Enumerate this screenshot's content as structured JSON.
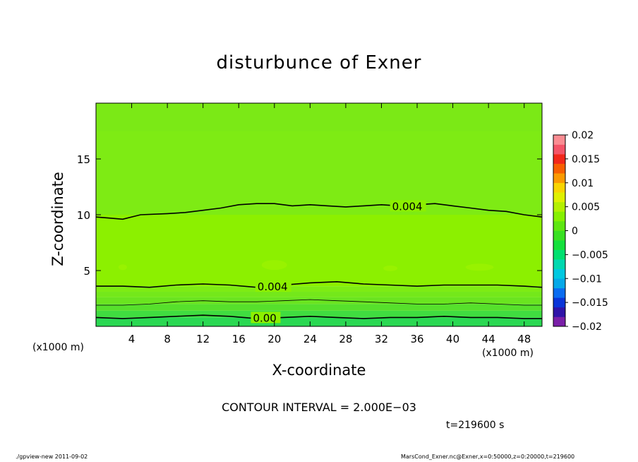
{
  "chart_data": {
    "type": "heatmap",
    "title": "disturbunce of Exner",
    "xlabel": "X-coordinate",
    "ylabel": "Z-coordinate",
    "x_unit_left": "(x1000 m)",
    "x_unit_right": "(x1000 m)",
    "xlim": [
      0,
      50
    ],
    "ylim": [
      0,
      20
    ],
    "xticks": [
      4,
      8,
      12,
      16,
      20,
      24,
      28,
      32,
      36,
      40,
      44,
      48
    ],
    "yticks": [
      5,
      10,
      15
    ],
    "colorbar": {
      "ticks": [
        0.02,
        0.015,
        0.01,
        0.005,
        0,
        -0.005,
        -0.01,
        -0.015,
        -0.02
      ],
      "tick_labels": [
        "0.02",
        "0.015",
        "0.01",
        "0.005",
        "0",
        "−0.005",
        "−0.01",
        "−0.015",
        "−0.02"
      ],
      "range": [
        -0.02,
        0.02
      ],
      "level_colors": [
        "#7a1fa8",
        "#2f14a8",
        "#0a35d8",
        "#0a6cf0",
        "#05a8e8",
        "#00c8e0",
        "#00d8b0",
        "#00e070",
        "#14e03c",
        "#38e021",
        "#5ee611",
        "#86f000",
        "#b4f000",
        "#dff000",
        "#f8d400",
        "#fb9a00",
        "#f85f00",
        "#f2271a",
        "#f45468",
        "#fa8c92"
      ]
    },
    "contours": [
      {
        "label": "0.004",
        "points": [
          [
            0,
            9.8
          ],
          [
            1.5,
            9.7
          ],
          [
            3,
            9.6
          ],
          [
            5,
            10
          ],
          [
            8,
            10.1
          ],
          [
            10,
            10.2
          ],
          [
            12,
            10.4
          ],
          [
            14,
            10.6
          ],
          [
            16,
            10.9
          ],
          [
            18,
            11
          ],
          [
            20,
            11
          ],
          [
            22,
            10.8
          ],
          [
            24,
            10.9
          ],
          [
            26,
            10.8
          ],
          [
            28,
            10.7
          ],
          [
            30,
            10.8
          ],
          [
            32,
            10.9
          ],
          [
            34,
            10.8
          ],
          [
            36,
            10.9
          ],
          [
            38,
            11
          ],
          [
            40,
            10.8
          ],
          [
            42,
            10.6
          ],
          [
            44,
            10.4
          ],
          [
            46,
            10.3
          ],
          [
            48,
            10
          ],
          [
            50,
            9.8
          ]
        ],
        "label_at": [
          33.2,
          10.8
        ]
      },
      {
        "label": "0.004",
        "points": [
          [
            0,
            3.6
          ],
          [
            3,
            3.6
          ],
          [
            6,
            3.5
          ],
          [
            9,
            3.7
          ],
          [
            12,
            3.8
          ],
          [
            15,
            3.7
          ],
          [
            18,
            3.5
          ],
          [
            21,
            3.7
          ],
          [
            24,
            3.9
          ],
          [
            27,
            4
          ],
          [
            30,
            3.8
          ],
          [
            33,
            3.7
          ],
          [
            36,
            3.6
          ],
          [
            39,
            3.7
          ],
          [
            42,
            3.7
          ],
          [
            45,
            3.7
          ],
          [
            48,
            3.6
          ],
          [
            50,
            3.5
          ]
        ],
        "label_at": [
          18.1,
          3.6
        ]
      },
      {
        "label": "",
        "points": [
          [
            0,
            1.9
          ],
          [
            3,
            1.9
          ],
          [
            6,
            2
          ],
          [
            9,
            2.2
          ],
          [
            12,
            2.3
          ],
          [
            15,
            2.2
          ],
          [
            18,
            2.2
          ],
          [
            21,
            2.3
          ],
          [
            24,
            2.4
          ],
          [
            27,
            2.3
          ],
          [
            30,
            2.2
          ],
          [
            33,
            2.1
          ],
          [
            36,
            2
          ],
          [
            39,
            2
          ],
          [
            42,
            2.1
          ],
          [
            45,
            2
          ],
          [
            48,
            1.9
          ],
          [
            50,
            1.9
          ]
        ],
        "label_at": null
      },
      {
        "label": "0.00",
        "points": [
          [
            0,
            0.8
          ],
          [
            3,
            0.7
          ],
          [
            6,
            0.8
          ],
          [
            9,
            0.9
          ],
          [
            12,
            1
          ],
          [
            15,
            0.9
          ],
          [
            18,
            0.7
          ],
          [
            21,
            0.8
          ],
          [
            24,
            0.9
          ],
          [
            27,
            0.8
          ],
          [
            30,
            0.7
          ],
          [
            33,
            0.8
          ],
          [
            36,
            0.8
          ],
          [
            39,
            0.9
          ],
          [
            42,
            0.8
          ],
          [
            45,
            0.8
          ],
          [
            48,
            0.7
          ],
          [
            50,
            0.7
          ]
        ],
        "label_at": [
          17.6,
          0.8
        ]
      }
    ],
    "filled_bands": [
      {
        "from_z": 0,
        "to_z": 0.8,
        "color": "#2ad852"
      },
      {
        "from_z": 0.8,
        "to_z": 1.4,
        "color": "#40dc40"
      },
      {
        "from_z": 1.4,
        "to_z": 2.0,
        "color": "#56e02c"
      },
      {
        "from_z": 2.0,
        "to_z": 2.6,
        "color": "#6ae420"
      },
      {
        "from_z": 2.6,
        "to_z": 3.1,
        "color": "#74e81a"
      },
      {
        "from_z": 3.1,
        "to_z": 3.6,
        "color": "#7eec14"
      },
      {
        "from_z": 3.6,
        "to_z": 10.0,
        "color": "#8cf000"
      },
      {
        "from_z": 10.0,
        "to_z": 20.0,
        "color": "#7eeb14"
      }
    ]
  },
  "contour_interval": "CONTOUR INTERVAL = 2.000E−03",
  "timestamp": "t=219600 s",
  "footer_left": "./gpview-new   2011-09-02",
  "footer_right": "MarsCond_Exner.nc@Exner,x=0:50000,z=0:20000,t=219600"
}
